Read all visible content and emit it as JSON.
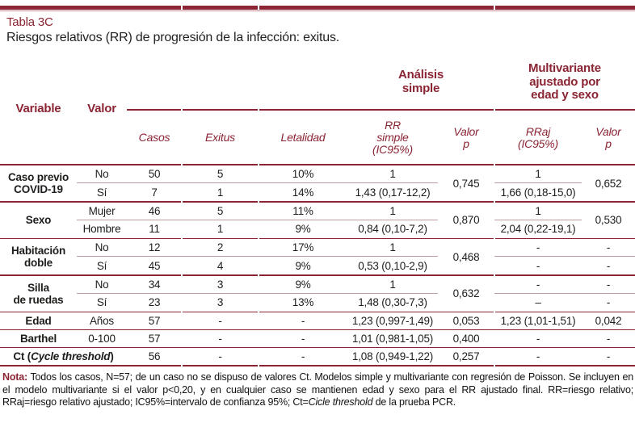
{
  "page": {
    "title": "Tabla 3C",
    "subtitle": "Riesgos relativos (RR) de progresión de la infección: exitus."
  },
  "colors": {
    "accent": "#8b2433",
    "subrow_line": "#bd9da0",
    "thin_top_line": "#c9868d"
  },
  "header": {
    "variable": "Variable",
    "valor": "Valor",
    "analisis_simple": "Análisis\nsimple",
    "multivariante": "Multivariante\najustado por\nedad y sexo",
    "casos": "Casos",
    "exitus": "Exitus",
    "letalidad": "Letalidad",
    "rr_simple": "RR\nsimple\n(IC95%)",
    "valor_p": "Valor\np",
    "rraj": "RRaj\n(IC95%)",
    "valor_p2": "Valor\np"
  },
  "body": {
    "g1": {
      "variable": "Caso previo\nCOVID-19",
      "p": "0,745",
      "praj": "0,652",
      "r1": {
        "valor": "No",
        "casos": "50",
        "exitus": "5",
        "letalidad": "10%",
        "rr": "1",
        "rraj": "1"
      },
      "r2": {
        "valor": "Sí",
        "casos": "7",
        "exitus": "1",
        "letalidad": "14%",
        "rr": "1,43 (0,17-12,2)",
        "rraj": "1,66 (0,18-15,0)"
      }
    },
    "g2": {
      "variable": "Sexo",
      "p": "0,870",
      "praj": "0,530",
      "r1": {
        "valor": "Mujer",
        "casos": "46",
        "exitus": "5",
        "letalidad": "11%",
        "rr": "1",
        "rraj": "1"
      },
      "r2": {
        "valor": "Hombre",
        "casos": "11",
        "exitus": "1",
        "letalidad": "9%",
        "rr": "0,84 (0,10-7,2)",
        "rraj": "2,04 (0,22-19,1)"
      }
    },
    "g3": {
      "variable": "Habitación\ndoble",
      "p": "0,468",
      "r1": {
        "valor": "No",
        "casos": "12",
        "exitus": "2",
        "letalidad": "17%",
        "rr": "1",
        "rraj": "-",
        "praj": "-"
      },
      "r2": {
        "valor": "Sí",
        "casos": "45",
        "exitus": "4",
        "letalidad": "9%",
        "rr": "0,53 (0,10-2,9)",
        "rraj": "-",
        "praj": "-"
      }
    },
    "g4": {
      "variable": "Silla\nde ruedas",
      "p": "0,632",
      "r1": {
        "valor": "No",
        "casos": "34",
        "exitus": "3",
        "letalidad": "9%",
        "rr": "1",
        "rraj": "-",
        "praj": "-"
      },
      "r2": {
        "valor": "Sí",
        "casos": "23",
        "exitus": "3",
        "letalidad": "13%",
        "rr": "1,48 (0,30-7,3)",
        "rraj": "–",
        "praj": "-"
      }
    },
    "s1": {
      "variable": "Edad",
      "valor": "Años",
      "casos": "57",
      "exitus": "-",
      "letalidad": "-",
      "rr": "1,23 (0,997-1,49)",
      "p": "0,053",
      "rraj": "1,23 (1,01-1,51)",
      "praj": "0,042"
    },
    "s2": {
      "variable": "Barthel",
      "valor": "0-100",
      "casos": "57",
      "exitus": "-",
      "letalidad": "-",
      "rr": "1,01 (0,981-1,05)",
      "p": "0,400",
      "rraj": "-",
      "praj": "-"
    },
    "s3": {
      "variable_pre": "Ct (",
      "variable_it": "Cycle threshold",
      "variable_post": ")",
      "casos": "56",
      "exitus": "-",
      "letalidad": "-",
      "rr": "1,08 (0,949-1,22)",
      "p": "0,257",
      "rraj": "-",
      "praj": "-"
    }
  },
  "note": {
    "label": "Nota:",
    "part1": " Todos los casos, N=57; de un caso no se dispuso de valores Ct. Modelos simple y multivariante con regresión de Poisson. Se incluyen en el modelo multivariante si el valor p<0,20, y en cualquier caso se mantienen edad y sexo para el RR ajustado final. RR=riesgo relativo; RRaj=riesgo relativo ajustado; IC95%=intervalo de confianza 95%; Ct=",
    "italic": "Cicle threshold",
    "part2": " de la prueba PCR."
  }
}
